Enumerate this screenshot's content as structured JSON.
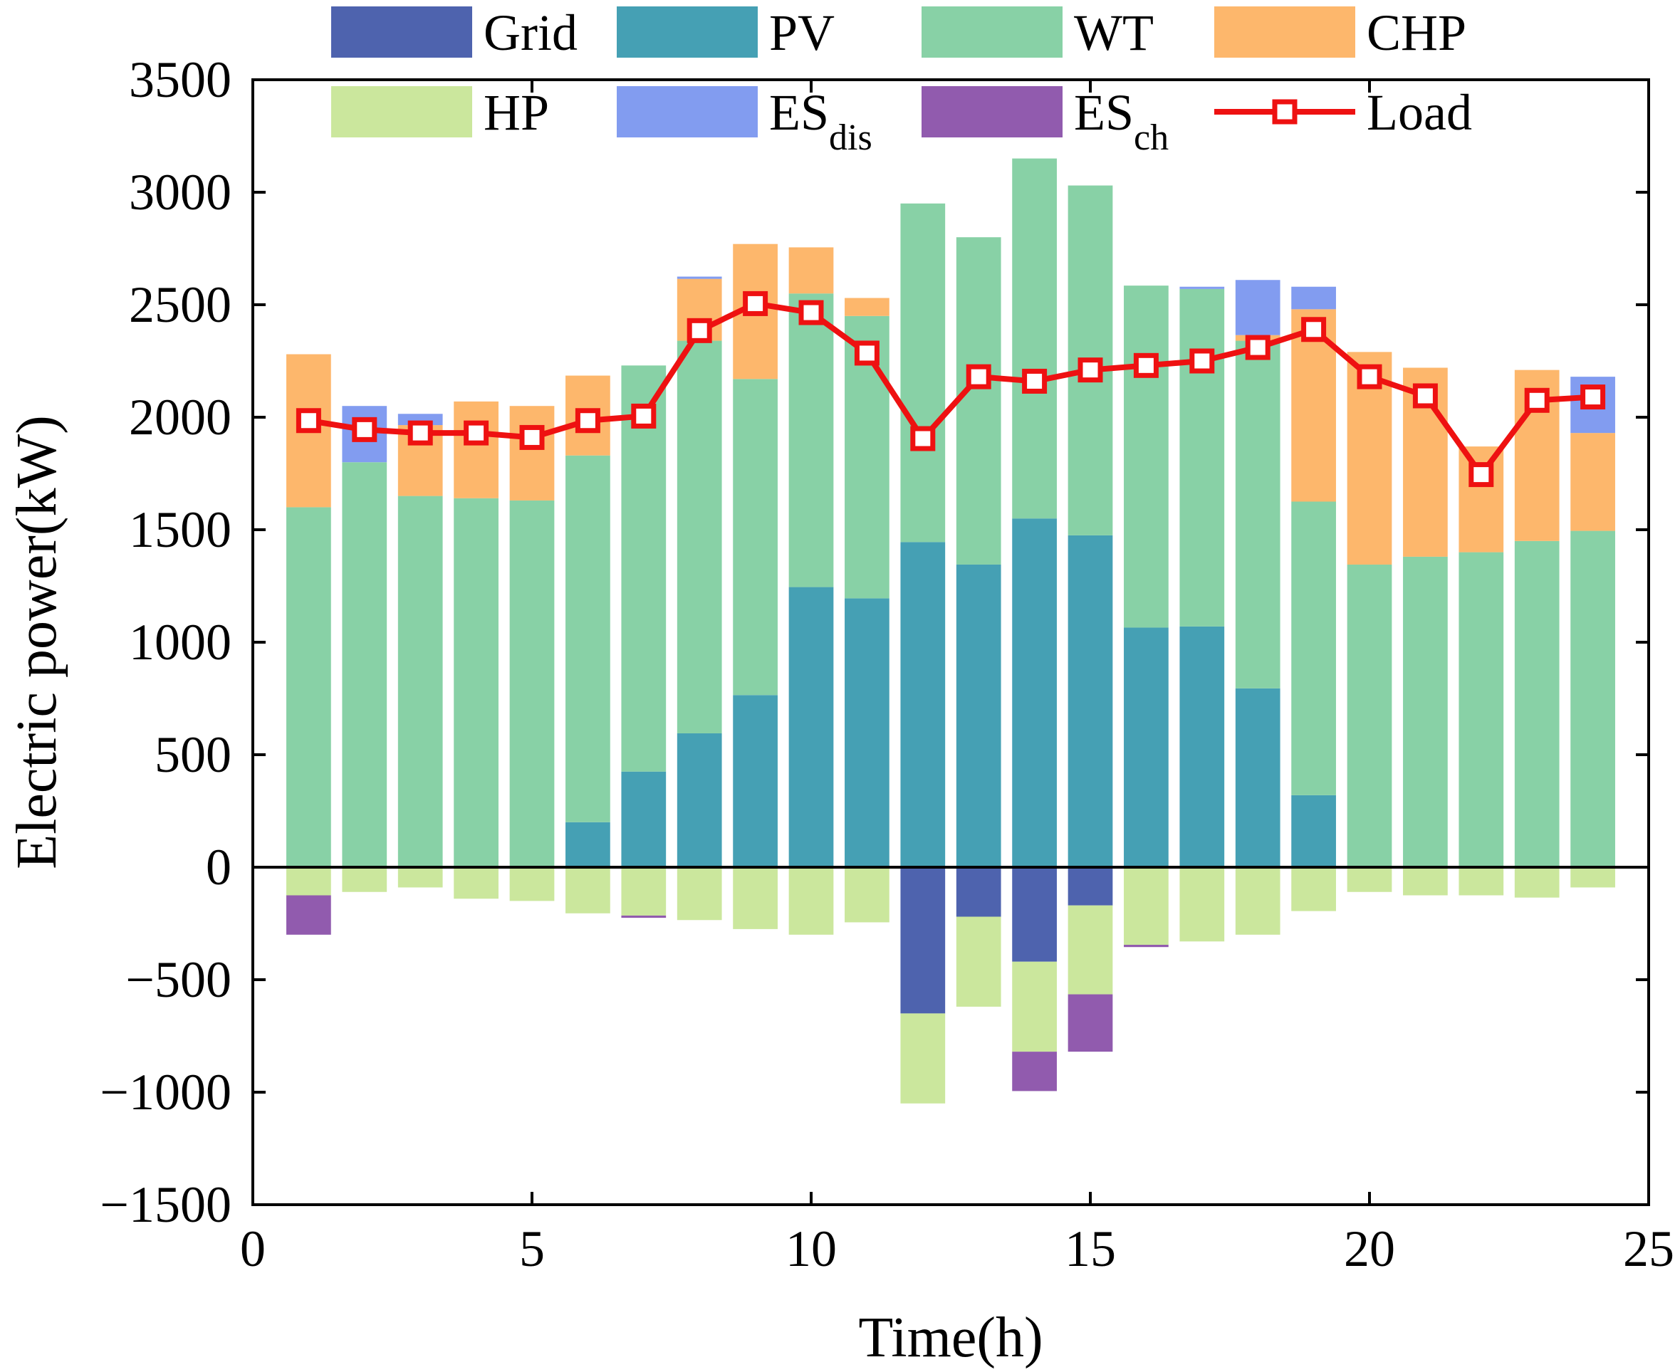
{
  "chart_data": {
    "type": "bar",
    "stacked": true,
    "xlabel": "Time(h)",
    "ylabel": "Electric power(kW)",
    "xlim": [
      0,
      25
    ],
    "ylim": [
      -1500,
      3500
    ],
    "xticks": [
      0,
      5,
      10,
      15,
      20,
      25
    ],
    "yticks": [
      -1500,
      -1000,
      -500,
      0,
      500,
      1000,
      1500,
      2000,
      2500,
      3000,
      3500
    ],
    "ytick_labels": [
      "−1500",
      "−1000",
      "−500",
      "0",
      "500",
      "1000",
      "1500",
      "2000",
      "2500",
      "3000",
      "3500"
    ],
    "hours": [
      1,
      2,
      3,
      4,
      5,
      6,
      7,
      8,
      9,
      10,
      11,
      12,
      13,
      14,
      15,
      16,
      17,
      18,
      19,
      20,
      21,
      22,
      23,
      24
    ],
    "positive_series": [
      {
        "name": "PV",
        "color": "#45A0B4",
        "values": [
          0,
          0,
          0,
          0,
          0,
          200,
          425,
          595,
          765,
          1245,
          1195,
          1445,
          1345,
          1550,
          1475,
          1065,
          1070,
          795,
          320,
          0,
          0,
          0,
          0,
          0
        ]
      },
      {
        "name": "WT",
        "color": "#88D1A6",
        "values": [
          1600,
          1800,
          1650,
          1640,
          1630,
          1630,
          1805,
          1745,
          1405,
          1305,
          1255,
          1505,
          1455,
          1600,
          1555,
          1520,
          1500,
          1545,
          1305,
          1345,
          1380,
          1400,
          1450,
          1495
        ]
      },
      {
        "name": "CHP",
        "color": "#FDB76C",
        "values": [
          680,
          0,
          315,
          430,
          420,
          355,
          0,
          275,
          600,
          205,
          80,
          0,
          0,
          0,
          0,
          0,
          0,
          25,
          855,
          945,
          840,
          470,
          760,
          435
        ]
      },
      {
        "name": "ES_dis",
        "color": "#829CF0",
        "values": [
          0,
          250,
          50,
          0,
          0,
          0,
          0,
          10,
          0,
          0,
          0,
          0,
          0,
          0,
          0,
          0,
          10,
          245,
          100,
          0,
          0,
          0,
          0,
          250
        ]
      }
    ],
    "negative_series": [
      {
        "name": "Grid",
        "color": "#4E63AE",
        "values": [
          0,
          0,
          0,
          0,
          0,
          0,
          0,
          0,
          0,
          0,
          0,
          -650,
          -220,
          -420,
          -170,
          0,
          0,
          0,
          0,
          0,
          0,
          0,
          0,
          0
        ]
      },
      {
        "name": "HP",
        "color": "#CBE79D",
        "values": [
          -125,
          -110,
          -90,
          -140,
          -150,
          -205,
          -215,
          -235,
          -275,
          -300,
          -245,
          -400,
          -400,
          -400,
          -395,
          -345,
          -330,
          -300,
          -195,
          -110,
          -125,
          -125,
          -135,
          -90
        ]
      },
      {
        "name": "ES_ch",
        "color": "#915BAE",
        "values": [
          -175,
          0,
          0,
          0,
          0,
          0,
          -10,
          0,
          0,
          0,
          0,
          0,
          0,
          -175,
          -255,
          -10,
          0,
          0,
          0,
          0,
          0,
          0,
          0,
          0
        ]
      }
    ],
    "load": {
      "name": "Load",
      "color": "#EE1111",
      "values": [
        1985,
        1945,
        1930,
        1930,
        1910,
        1985,
        2005,
        2385,
        2505,
        2465,
        2285,
        1905,
        2180,
        2160,
        2210,
        2230,
        2250,
        2310,
        2390,
        2180,
        2095,
        1745,
        2075,
        2090
      ]
    },
    "legend": [
      {
        "label": "Grid",
        "sub": "",
        "color": "#4E63AE",
        "kind": "bar"
      },
      {
        "label": "PV",
        "sub": "",
        "color": "#45A0B4",
        "kind": "bar"
      },
      {
        "label": "WT",
        "sub": "",
        "color": "#88D1A6",
        "kind": "bar"
      },
      {
        "label": "CHP",
        "sub": "",
        "color": "#FDB76C",
        "kind": "bar"
      },
      {
        "label": "HP",
        "sub": "",
        "color": "#CBE79D",
        "kind": "bar"
      },
      {
        "label": "ES",
        "sub": "dis",
        "color": "#829CF0",
        "kind": "bar"
      },
      {
        "label": "ES",
        "sub": "ch",
        "color": "#915BAE",
        "kind": "bar"
      },
      {
        "label": "Load",
        "sub": "",
        "color": "#EE1111",
        "kind": "line"
      }
    ],
    "legend_position": "top"
  }
}
